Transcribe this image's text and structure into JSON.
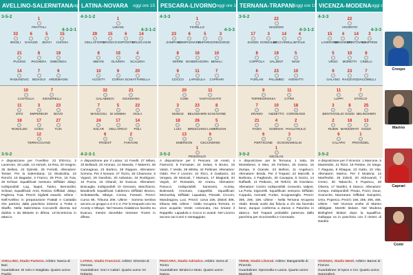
{
  "matches": [
    {
      "teams": "AVELLINO-SALERNITANA",
      "time": "oggi ore 15",
      "home_formation": "3-5-2",
      "home_formation_right": "4-3-2-1",
      "away_formation": "3-5-2",
      "home_players": [
        {
          "n": "1",
          "name": "Frattali"
        },
        {
          "n": "33",
          "name": "Bisoli"
        },
        {
          "n": "6",
          "name": "Gavazzi"
        },
        {
          "n": "5",
          "name": "Jidayi"
        },
        {
          "n": "15",
          "name": "Chiosa"
        },
        {
          "n": "21",
          "name": "Pucino"
        },
        {
          "n": "8",
          "name": "Paghera"
        },
        {
          "n": "19",
          "name": "Omeonga"
        },
        {
          "n": "14",
          "name": "Radunovic"
        },
        {
          "n": "7",
          "name": "Bidaoui"
        },
        {
          "n": "9",
          "name": "Ardemagni"
        }
      ],
      "away_players": [
        {
          "n": "10",
          "name": "Castiglia"
        },
        {
          "n": "7",
          "name": "Signorelli"
        },
        {
          "n": "11",
          "name": "Zito"
        },
        {
          "n": "3",
          "name": "Empereur"
        },
        {
          "n": "23",
          "name": "Bovo"
        },
        {
          "n": "18",
          "name": "Ronaldo"
        },
        {
          "n": "17",
          "name": "Coda"
        },
        {
          "n": "27",
          "name": "Tuia"
        },
        {
          "n": "12",
          "name": "Terracciano"
        }
      ],
      "info": "A disposizione per l'Avellino: 22 D'Errico, 2 Laverone, 16 Lasik, 13 Asmah, 18 Rea, 20 Insigne, 25 Belloni, 24 Djimsiti, 29 Ferretti. Allenatore: Tesser. Per la Salernitana: 12 Strakosha, 22 Ronchi, 15 Bagadur, 3 Franco, 28 Prce, 16 Tuia, 26 Schiavi. Squalificati: nessuno. Diffidati: Jidayi. Indisponibili: Lug, Napol, Tutino, Bernardini, Schiavi, Squalificati: Arini, Rosina. Diffidati: Jidayi, Paghera, Tuia. Prezzi: biglietti esauriti. Ultime - Nell'Avellino in preparazione Frattali e Castaldo che partono dalla panchina insieme a Trotta e Sbaffo. Nella Salernitana Coccarelli diventa sul dubbio e da Bittante in difesa. Un'incertezza in attacco.",
      "stadium": "AVELLINO, Stadio Partenio.",
      "referee": "Arbitro: Nasca di Bari.",
      "linesmen": "Guardalinee: Di Iorio e Intagliata.",
      "fourth": "Quarto uomo: Paolini.",
      "tv": "Tv: Sky Calcio 2"
    },
    {
      "teams": "LATINA-NOVARA",
      "time": "oggi ore 15",
      "home_formation": "4-3-1-2",
      "home_formation_right": "4-3-1-2",
      "away_formation": "4-2-3-1",
      "home_players": [
        {
          "n": "1",
          "name": "Ujkani"
        },
        {
          "n": "29",
          "name": "Dellafiore"
        },
        {
          "n": "15",
          "name": "Brosco"
        },
        {
          "n": "6",
          "name": "Esposito"
        },
        {
          "n": "14",
          "name": "Bruscagin"
        },
        {
          "n": "8",
          "name": "Mbaye"
        },
        {
          "n": "19",
          "name": "Olivera"
        },
        {
          "n": "4",
          "name": "Scalera"
        },
        {
          "n": "10",
          "name": "Acosty"
        },
        {
          "n": "9",
          "name": "Corvia"
        },
        {
          "n": "20",
          "name": "Schiattarella"
        }
      ],
      "away_players": [
        {
          "n": "32",
          "name": "Galabinov"
        },
        {
          "n": "21",
          "name": "Dickmann"
        },
        {
          "n": "7",
          "name": "Mancosu"
        },
        {
          "n": "5",
          "name": "Di Somma"
        },
        {
          "n": "22",
          "name": "Viola"
        },
        {
          "n": "24",
          "name": "Kolar"
        },
        {
          "n": "17",
          "name": "Dell'Orco"
        },
        {
          "n": "14",
          "name": "Poli"
        },
        {
          "n": "6",
          "name": "Troest"
        },
        {
          "n": "2",
          "name": "Faraoni"
        }
      ],
      "info": "A disposizione per il Latina: 12 Farelli, 27 Milani, 33 Bellandi, 20 Amman, 14 Mareda, 7 Matermi, 36 Cannagnoa, 23 Bortino, 28 Rappon. Allenatore: Somma. Per il Novara: 27 Tozzo, 26 Chiamone, 6 Viganò, 29 Garafoto, 30 Aebarian, 34 Rodriguez, 10 Pozza, 16 Orlandi, 32 Evacuo. Allenatore: Boscaglia. Indisponibili: Di Gennaro, Marchionni, Bandinelli. Squalificati: Calderoni. Diffidati: Brosco, Schiattarella, Mbaye, Corvia, Fossani. Prezzi: Curva 8€, Tribuna 20€. Ultime - Somma sembra ancora un gruppo a 4-3-1-2. Per la trequarti uno tra Acosty e Mbaye. Nel Novara Galabinov favorito su Evacuo, mentre dovrebbe rientrare Troest in difesa.",
      "stadium": "LATINA, Stadio Francioni.",
      "referee": "Arbitro: Ghersini di Genova.",
      "linesmen": "Guardalinee: Gori e Caliari.",
      "fourth": "Quarto uomo: Di Roberto.",
      "tv": "Tv: Sky Calcio 6"
    },
    {
      "teams": "PESCARA-LIVORNO",
      "time": "oggi ore 15",
      "home_formation": "4-3-3",
      "home_formation_right": "4-3-3",
      "away_formation": "3-5-2",
      "home_players": [
        {
          "n": "1",
          "name": "Fiorillo"
        },
        {
          "n": "23",
          "name": "Zampano"
        },
        {
          "n": "6",
          "name": "Campagnaro"
        },
        {
          "n": "5",
          "name": "Zuparic"
        },
        {
          "n": "3",
          "name": "Crescenzi"
        },
        {
          "n": "8",
          "name": "Verre"
        },
        {
          "n": "16",
          "name": "Mandragora"
        },
        {
          "n": "10",
          "name": "Benali"
        },
        {
          "n": "9",
          "name": "Cocco"
        },
        {
          "n": "11",
          "name": "Lapadula"
        },
        {
          "n": "7",
          "name": "Caprari"
        }
      ],
      "away_players": [
        {
          "n": "20",
          "name": "Comi"
        },
        {
          "n": "11",
          "name": "Vantaggiato"
        },
        {
          "n": "3",
          "name": "Munoz"
        },
        {
          "n": "23",
          "name": "Belingheri"
        },
        {
          "n": "8",
          "name": "Schiavone"
        },
        {
          "n": "18",
          "name": "Luci"
        },
        {
          "n": "26",
          "name": "Bresciano"
        },
        {
          "n": "5",
          "name": "Lambrughi"
        },
        {
          "n": "13",
          "name": "Emerson"
        },
        {
          "n": "6",
          "name": "Ceccherini"
        },
        {
          "n": "1",
          "name": "Pinsoglio"
        }
      ],
      "info": "A disposizione per il Pescara: 18 Aresti, 4 Fiamozzi, 8 Fornasier, 24 Selasi, 5 Bruno, 15 Valoti, 7 Verde, 29 Mitrita, 42 Pettinari. Allenatore: Oddo. Per il Livorno: 22 Ricci, 6 Gasbarro, 33 Vergara, 26 Moscati, 7 Marsura, 17 Biagianti, 34 Vayah, 37 Rossatini, 32 Aramu. Allenatore: Panucci. Indisponibili: Sansovini, Acosta, Bulevardi, Amoruso, Cappellini. Squalificati: Memushaj. Diffidati: Lapadula, Pineatti, Cicconi, Mandragora, Luci. Prezzi: curva 15€, distinti 30€, tribuna 45€. Ultime - Oddo recupera Torreira. In vece acquisto Verde convocato, ma rimane il Rappelle. Lapadula e Cocco in avanti. Nel Livorno ancora out Comi e Vantaggiato.",
      "stadium": "PESCARA, Stadio Adriatico.",
      "referee": "Arbitro: Serra di Torino.",
      "linesmen": "Guardalinee: Bindoni e Muto.",
      "fourth": "Quarto uomo: Nasca.",
      "tv": "Tv: Sky Calcio 5"
    },
    {
      "teams": "TERNANA-TRAPANI",
      "time": "oggi ore 15",
      "home_formation": "3-5-2",
      "home_formation_right": "4-3-1-2",
      "away_formation": "3-5-2",
      "home_players": [
        {
          "n": "22",
          "name": "Mazzoni"
        },
        {
          "n": "17",
          "name": "Zanon"
        },
        {
          "n": "3",
          "name": "Gonzalez"
        },
        {
          "n": "14",
          "name": "Meccariello"
        },
        {
          "n": "4",
          "name": "Vitale"
        },
        {
          "n": "8",
          "name": "Coppola"
        },
        {
          "n": "19",
          "name": "Valjent"
        },
        {
          "n": "5",
          "name": "Masi"
        },
        {
          "n": "6",
          "name": "Furlan"
        },
        {
          "n": "23",
          "name": "Palumbo"
        },
        {
          "n": "10",
          "name": "Avenatti"
        }
      ],
      "away_players": [
        {
          "n": "9",
          "name": "Torregrossa"
        },
        {
          "n": "11",
          "name": "Citro"
        },
        {
          "n": "7",
          "name": "Eramo"
        },
        {
          "n": "10",
          "name": "Nizzetto"
        },
        {
          "n": "18",
          "name": "Coronado"
        },
        {
          "n": "21",
          "name": "Fazio"
        },
        {
          "n": "4",
          "name": "Sodinha"
        },
        {
          "n": "2",
          "name": "Pagliarulo"
        },
        {
          "n": "6",
          "name": "Perticone"
        },
        {
          "n": "3",
          "name": "Scognamiglio"
        },
        {
          "n": "1",
          "name": "Nicolas"
        }
      ],
      "info": "A disposizione per la Ternana: 1 Sala, 29 Montebene, 5 Meo, 29 Ferlaino, 25 Gasso, 15 Zampa, 9 Grande, 23 Belloni, 11 Angelucci. Allenatore: Breda. Per il Trapani: 22 Marcelli, 8 Barbosa, 4 Pagliarulo, 30 Cavagna, 5 Sozzo, 14 Raffaelli, 11 Petkovic, 28 Terlizzi, 36 Giordano. Allenatore: Cosmi. Indisponibili: Ceravolo, Valjent, La Porta, Signorelli. Squalificati: nessuno. Diffidati: Coppola, Avenatti, Furlan, Scognamiglio. Prezzi: 30€, 20€, 15€. Ultime - Nella Ternana recupera Vitale. Breda vuole dar fiducia a chi sta facendo bene, dunque conferma a Zanon e Palumbo in attacco. Nel Trapani probabile partenza dalla panchina per Scozzarella e Coronado.",
      "stadium": "TERNI, Stadio Liberati.",
      "referee": "Arbitro: Manganiello di Pinerolo.",
      "linesmen": "Guardalinee: Opromolla e Lanza.",
      "fourth": "Quarto uomo: Martinelli.",
      "tv": "Tv: Sky Calcio 9"
    },
    {
      "teams": "VICENZA-MODENA",
      "time": "oggi ore 15",
      "home_formation": "4-3-3",
      "home_formation_right": "4-3-3",
      "away_formation": "3-5-2",
      "home_players": [
        {
          "n": "22",
          "name": "Vigorito"
        },
        {
          "n": "15",
          "name": "Laverone"
        },
        {
          "n": "4",
          "name": "Brighenti"
        },
        {
          "n": "14",
          "name": "Mantovani"
        },
        {
          "n": "3",
          "name": "Sampirisi"
        },
        {
          "n": "5",
          "name": "Urso"
        },
        {
          "n": "10",
          "name": "Moretti"
        },
        {
          "n": "8",
          "name": "Cinelli"
        },
        {
          "n": "9",
          "name": "Galano"
        },
        {
          "n": "23",
          "name": "Raicevic"
        },
        {
          "n": "7",
          "name": "Giacomelli"
        }
      ],
      "away_players": [
        {
          "n": "11",
          "name": "Luppi"
        },
        {
          "n": "7",
          "name": "Stanco"
        },
        {
          "n": "3",
          "name": "Bentivoglio"
        },
        {
          "n": "8",
          "name": "Gozzi"
        },
        {
          "n": "25",
          "name": "Belingheri"
        },
        {
          "n": "2",
          "name": "Rubin"
        },
        {
          "n": "18",
          "name": "Marzorati"
        },
        {
          "n": "13",
          "name": "Gozzi"
        },
        {
          "n": "6",
          "name": "Calapai"
        },
        {
          "n": "1",
          "name": "Provedel"
        }
      ],
      "info": "A disposizione per il Vicenza: 1 Marcone, 5 Mantredini, 21 Rizzi, 19 Pettine, 24 Siega, 7 Ragusa, 8 Ebagua, 23 Gatto, 10 Vita. Allenatore: Marino. Per il Modena: 12 Manfredini, 26 Zoboli, 20 Aldrovandi, 7 Cresci, 30 Tabacchi, 3 Popescu, 28 Olivera, 17 Nardini, 9 Stanco. Allenatore: Crespo. Indisponibili: Pinato, Pozzi, Doue, Granoche, Mazzarani. Diffidati: Sampirisi, Urso, Popescu. Prezzi: 15€, 25€, 30€, 45€. Ultime - Nel Vicenza scelte di Marino obbligate. Moretti titolare. Nel Modena Belingheri titolare dopo la squalifica. Galloppa va in panchina con il rientro di Nardini.",
      "stadium": "VICENZA, Stadio Menti.",
      "referee": "Arbitro: Baroni di Firenze.",
      "linesmen": "Guardalinee: D'Apice e Cei.",
      "fourth": "Quarto uomo: Spezzaferri.",
      "tv": "Tv: Sky Calcio 2"
    }
  ],
  "sidebar": [
    {
      "label": "Crespo",
      "photo": "coach-photo"
    },
    {
      "label": "Marino",
      "photo": "coach-photo"
    },
    {
      "label": "Caprari",
      "photo": "player-photo"
    },
    {
      "label": "Comi",
      "photo": "player-photo"
    }
  ],
  "colors": {
    "header": "#169c95",
    "home_half": "#d8eaf0",
    "away_half": "#f1e7d7",
    "formation": "#148a40",
    "number": "#d21"
  }
}
